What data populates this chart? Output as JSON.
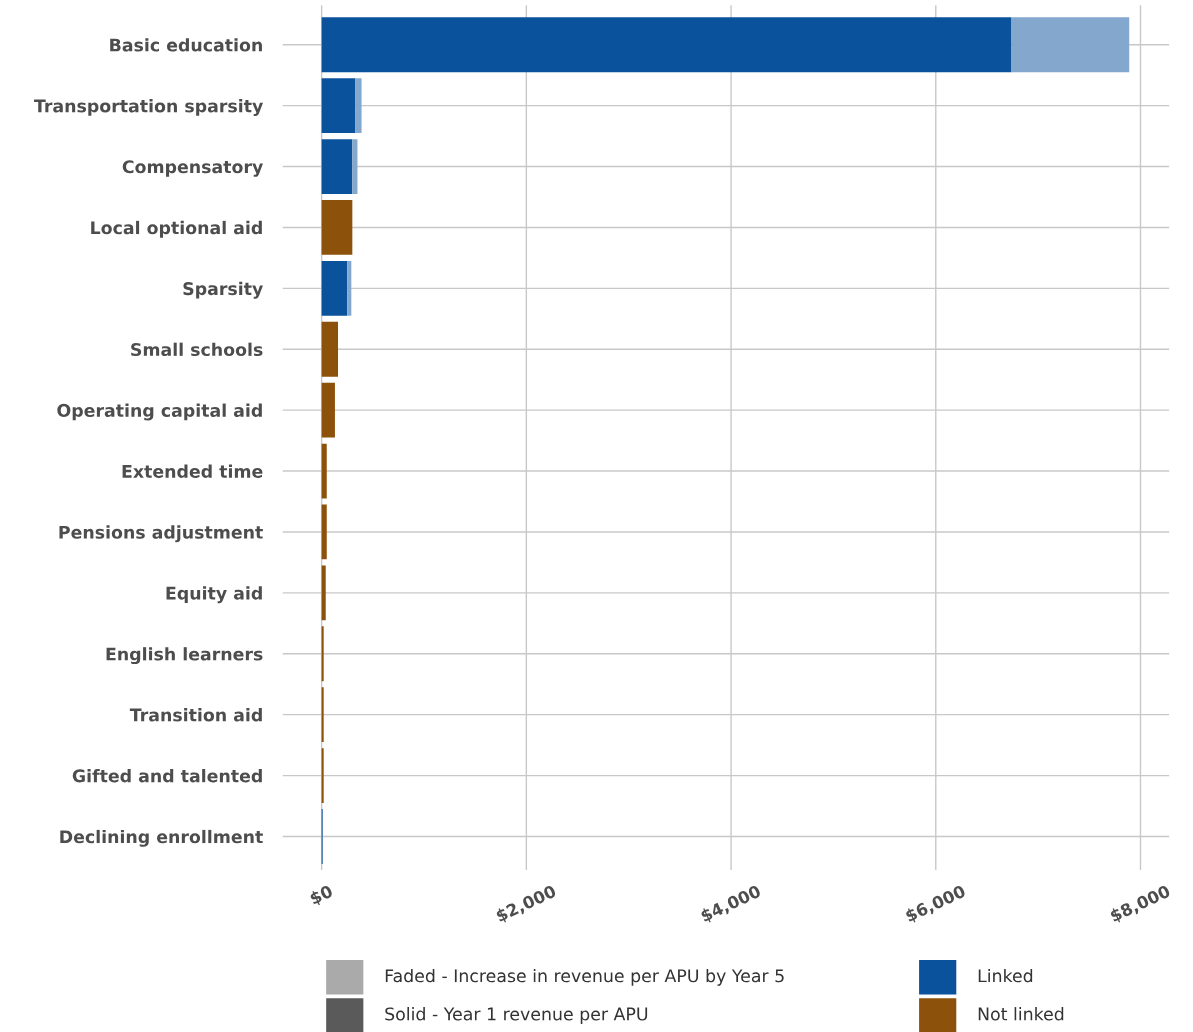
{
  "chart_data": {
    "type": "bar",
    "orientation": "horizontal",
    "stacked": true,
    "categories": [
      "Basic education",
      "Transportation sparsity",
      "Compensatory",
      "Local optional aid",
      "Sparsity",
      "Small schools",
      "Operating capital aid",
      "Extended time",
      "Pensions adjustment",
      "Equity aid",
      "English learners",
      "Transition aid",
      "Gifted and talented",
      "Declining enrollment"
    ],
    "series": [
      {
        "name": "Solid - Year 1 revenue per APU",
        "color": "#5a5a5a",
        "colors": [
          "#0a529b",
          "#0a529b",
          "#0a529b",
          "#8c510a",
          "#0a529b",
          "#8c510a",
          "#8c510a",
          "#8c510a",
          "#8c510a",
          "#8c510a",
          "#8c510a",
          "#8c510a",
          "#8c510a",
          "#0a529b"
        ],
        "values": [
          6740,
          330,
          300,
          300,
          250,
          160,
          130,
          50,
          50,
          40,
          20,
          20,
          20,
          10
        ]
      },
      {
        "name": "Faded - Increase in revenue per APU by Year 5",
        "color": "#aaaaaa",
        "colors": [
          "#84a8cd",
          "#84a8cd",
          "#84a8cd",
          "#c5a884",
          "#84a8cd",
          "#c5a884",
          "#c5a884",
          "#c5a884",
          "#c5a884",
          "#c5a884",
          "#c5a884",
          "#c5a884",
          "#c5a884",
          "#84a8cd"
        ],
        "values": [
          1150,
          60,
          50,
          0,
          40,
          0,
          0,
          0,
          0,
          0,
          0,
          0,
          0,
          0
        ]
      }
    ],
    "annotations": [
      "Linked",
      "Not linked"
    ],
    "xlim": [
      -380,
      8280
    ],
    "xticks": [
      {
        "value": 0,
        "label": "$0"
      },
      {
        "value": 2000,
        "label": "$2,000"
      },
      {
        "value": 4000,
        "label": "$4,000"
      },
      {
        "value": 6000,
        "label": "$6,000"
      },
      {
        "value": 8000,
        "label": "$8,000"
      }
    ],
    "grid": true,
    "legend": "bottom"
  }
}
